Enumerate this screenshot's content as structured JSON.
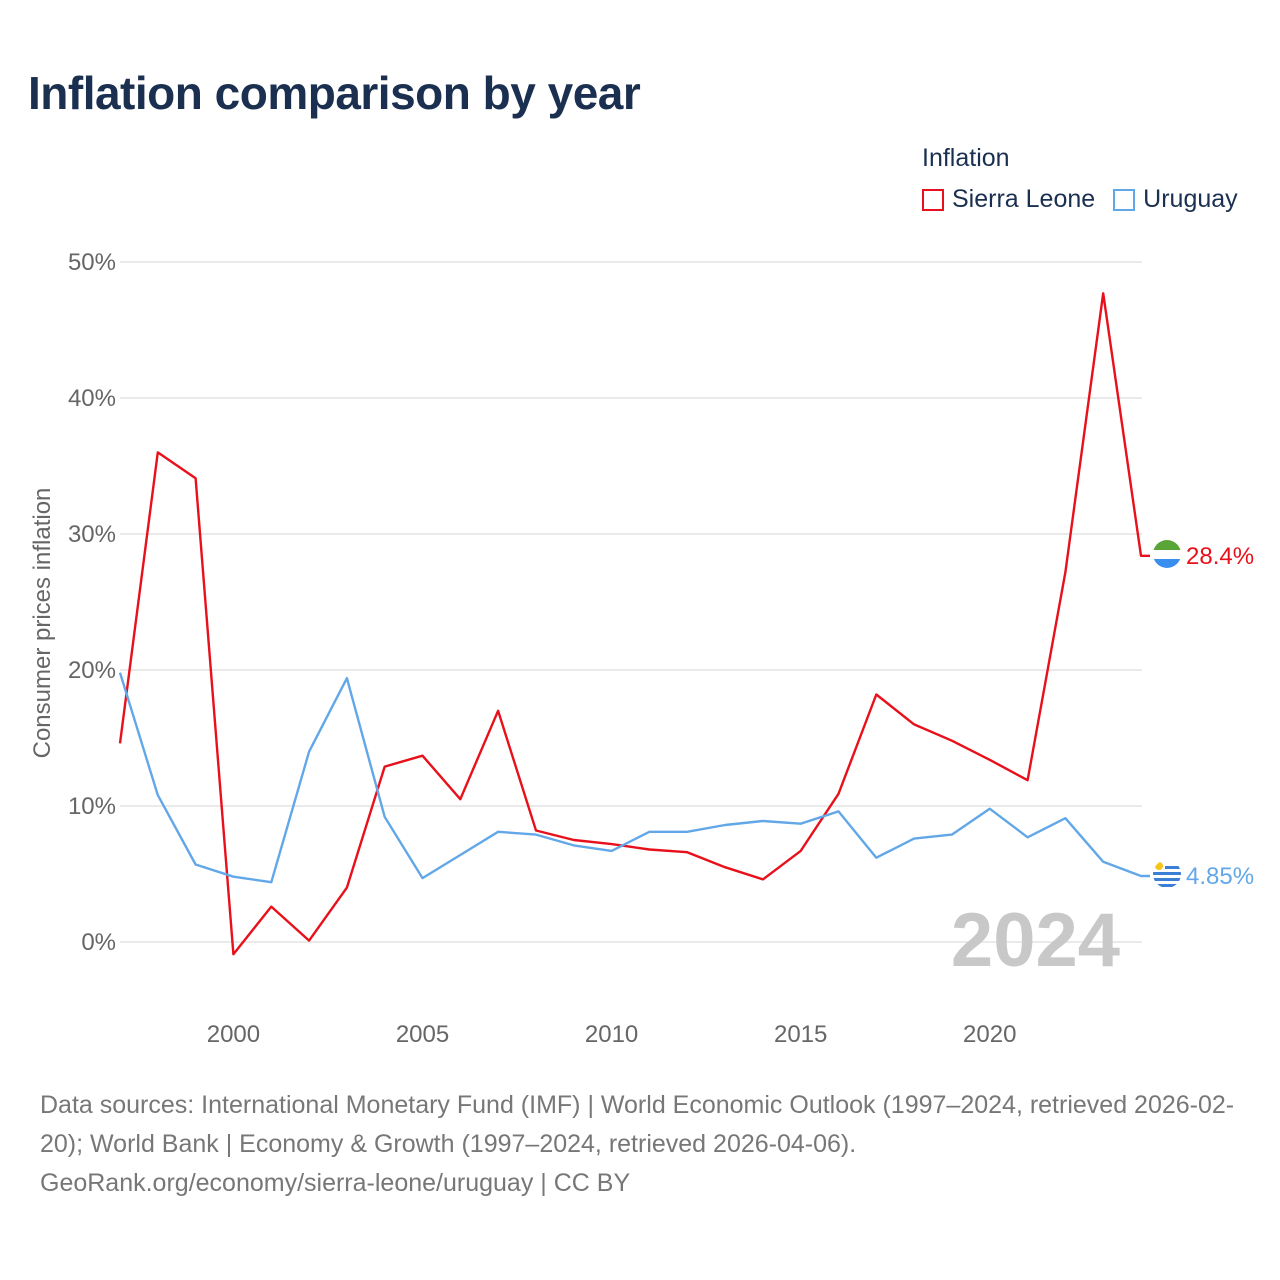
{
  "title": "Inflation comparison by year",
  "legend": {
    "title": "Inflation",
    "items": [
      {
        "name": "Sierra Leone",
        "color": "#e8101a"
      },
      {
        "name": "Uruguay",
        "color": "#62a7e8"
      }
    ]
  },
  "chart_data": {
    "type": "line",
    "title": "Inflation comparison by year",
    "ylabel": "Consumer prices inflation",
    "xlabel": "",
    "ylim": [
      -5,
      52
    ],
    "xlim": [
      1997,
      2024
    ],
    "yticks": [
      0,
      10,
      20,
      30,
      40,
      50
    ],
    "ytick_labels": [
      "0%",
      "10%",
      "20%",
      "30%",
      "40%",
      "50%"
    ],
    "xticks": [
      2000,
      2005,
      2010,
      2015,
      2020
    ],
    "xtick_labels": [
      "2000",
      "2005",
      "2010",
      "2015",
      "2020"
    ],
    "x": [
      1997,
      1998,
      1999,
      2000,
      2001,
      2002,
      2003,
      2004,
      2005,
      2006,
      2007,
      2008,
      2009,
      2010,
      2011,
      2012,
      2013,
      2014,
      2015,
      2016,
      2017,
      2018,
      2019,
      2020,
      2021,
      2022,
      2023,
      2024
    ],
    "series": [
      {
        "name": "Sierra Leone",
        "color": "#e8101a",
        "values": [
          14.6,
          36.0,
          34.1,
          -0.9,
          2.6,
          0.1,
          4.0,
          12.9,
          13.7,
          10.5,
          17.0,
          8.2,
          7.5,
          7.2,
          6.8,
          6.6,
          5.5,
          4.6,
          6.7,
          10.9,
          18.2,
          16.0,
          14.8,
          13.4,
          11.9,
          27.2,
          47.7,
          28.4
        ],
        "end_label": "28.4%"
      },
      {
        "name": "Uruguay",
        "color": "#62a7e8",
        "values": [
          19.8,
          10.8,
          5.7,
          4.8,
          4.4,
          14.0,
          19.4,
          9.2,
          4.7,
          6.4,
          8.1,
          7.9,
          7.1,
          6.7,
          8.1,
          8.1,
          8.6,
          8.9,
          8.7,
          9.6,
          6.2,
          7.6,
          7.9,
          9.8,
          7.7,
          9.1,
          5.9,
          4.85
        ],
        "end_label": "4.85%"
      }
    ],
    "year_watermark": "2024"
  },
  "footer": {
    "sources": "Data sources: International Monetary Fund (IMF) | World Economic Outlook (1997–2024, retrieved 2026-02-20); World Bank | Economy & Growth (1997–2024, retrieved 2026-04-06).",
    "credit": "GeoRank.org/economy/sierra-leone/uruguay | CC BY"
  }
}
